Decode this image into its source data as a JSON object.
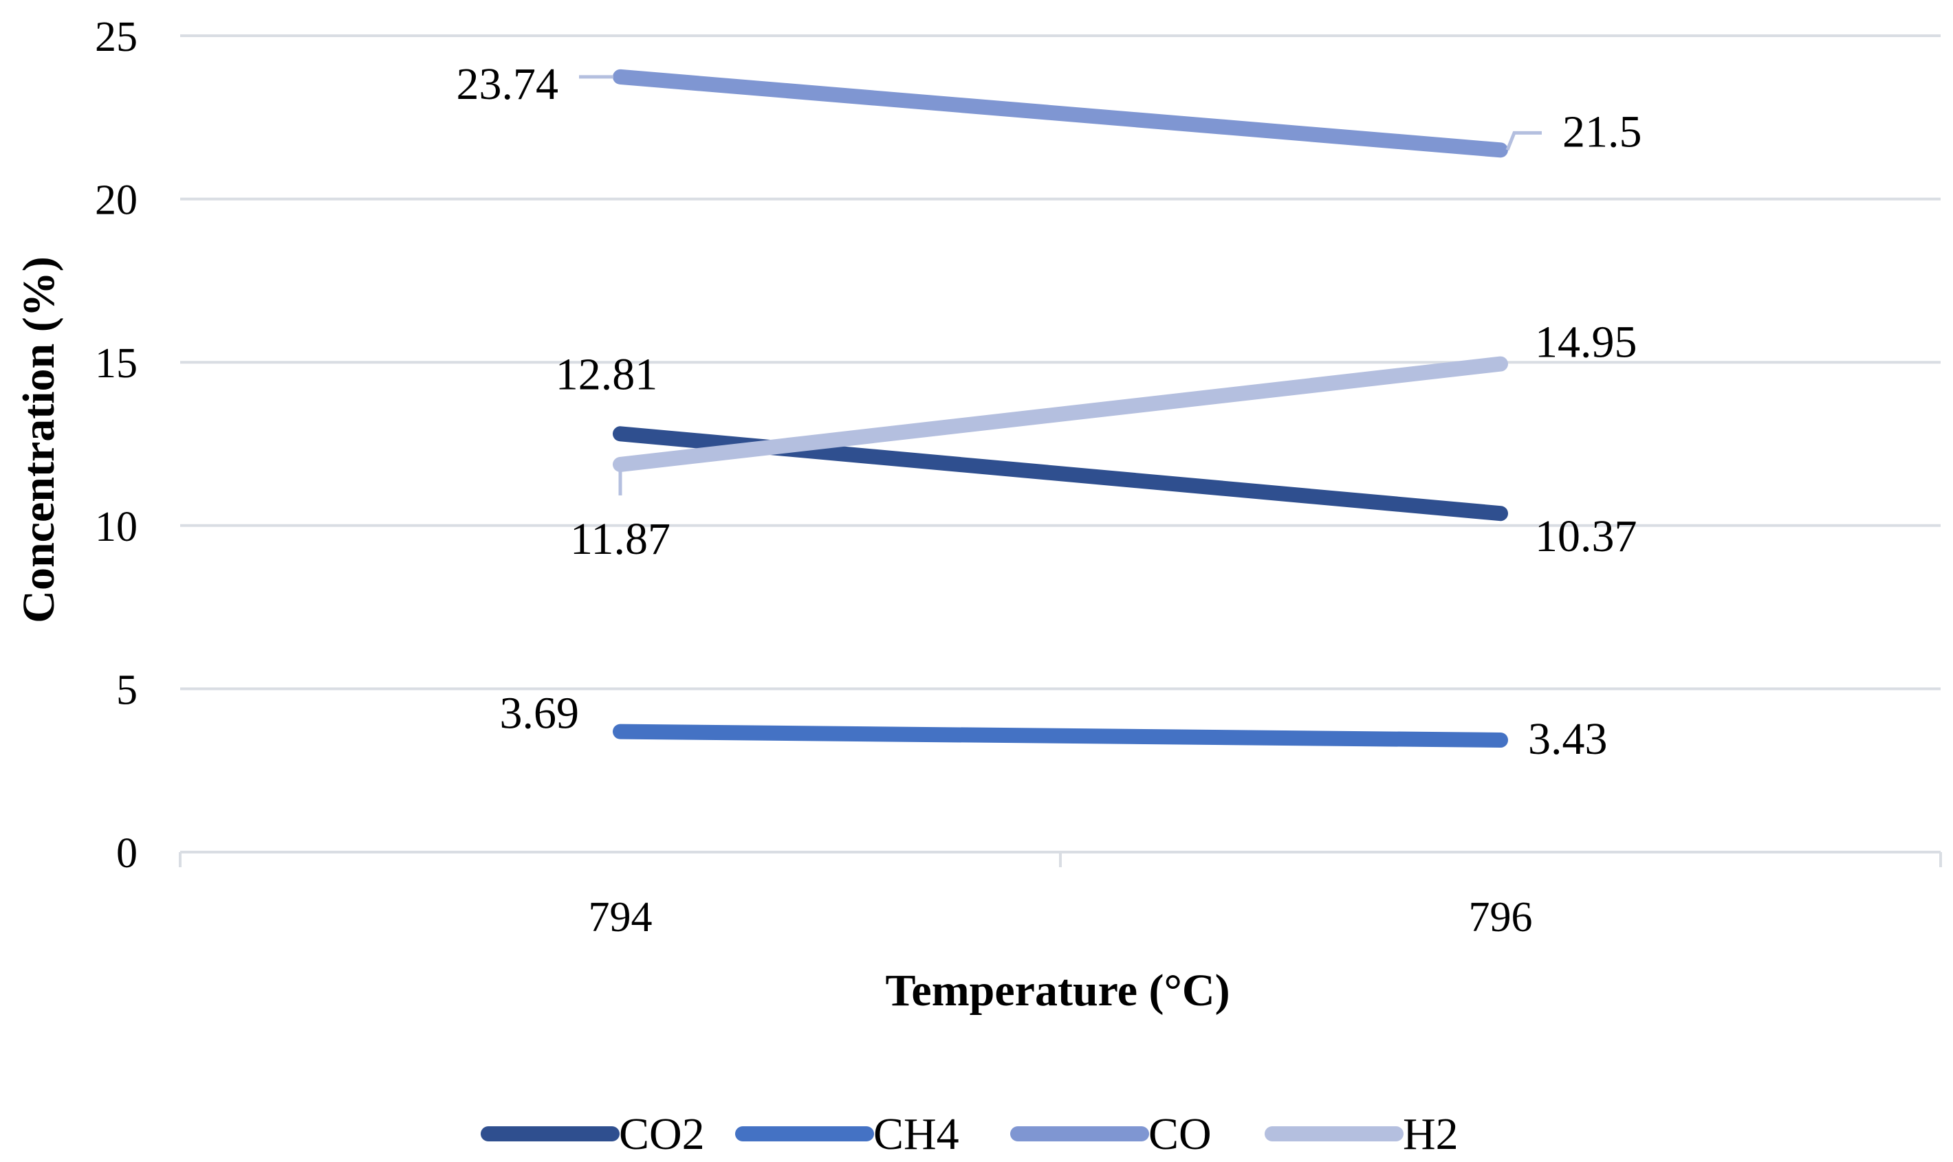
{
  "chart_data": {
    "type": "line",
    "title": "",
    "xlabel": "Temperature (°C)",
    "ylabel": "Concentration (%)",
    "categories": [
      "794",
      "796"
    ],
    "ylim": [
      0,
      25
    ],
    "yticks": [
      "0",
      "5",
      "10",
      "15",
      "20",
      "25"
    ],
    "grid": true,
    "legend_position": "bottom",
    "series": [
      {
        "name": "CO2",
        "values": [
          12.81,
          10.37
        ],
        "labels": [
          "12.81",
          "10.37"
        ],
        "color": "#2f4f8f"
      },
      {
        "name": "CH4",
        "values": [
          3.69,
          3.43
        ],
        "labels": [
          "3.69",
          "3.43"
        ],
        "color": "#4472c4"
      },
      {
        "name": "CO",
        "values": [
          23.74,
          21.5
        ],
        "labels": [
          "23.74",
          "21.5"
        ],
        "color": "#7f96d2"
      },
      {
        "name": "H2",
        "values": [
          11.87,
          14.95
        ],
        "labels": [
          "11.87",
          "14.95"
        ],
        "color": "#b4bfdf"
      }
    ]
  }
}
